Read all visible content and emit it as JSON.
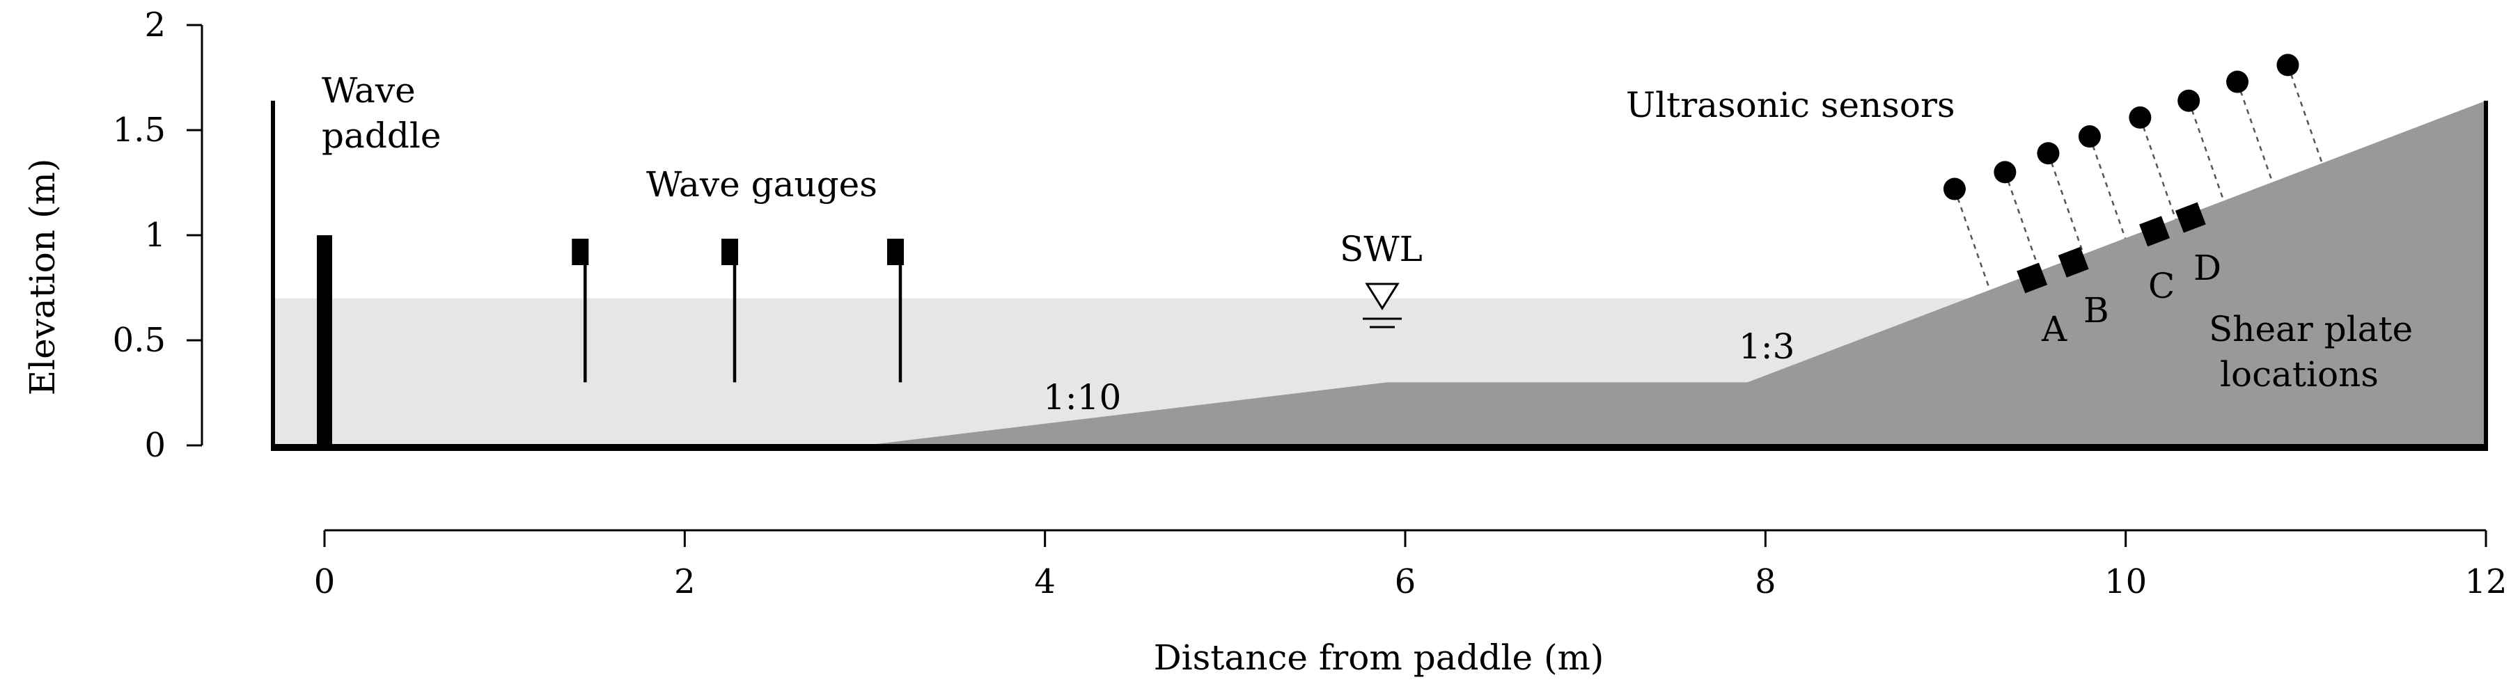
{
  "chart_data": {
    "type": "diagram",
    "title": "",
    "xlabel": "Distance from paddle (m)",
    "ylabel": "Elevation (m)",
    "xlim": [
      0,
      12
    ],
    "ylim": [
      0,
      2
    ],
    "x_ticks": [
      "0",
      "2",
      "4",
      "6",
      "8",
      "10",
      "12"
    ],
    "y_ticks": [
      "0",
      "0.5",
      "1",
      "1.5",
      "2"
    ],
    "swl_elevation": 0.7,
    "bathymetry": [
      [
        3.0,
        0.0
      ],
      [
        5.9,
        0.3
      ],
      [
        7.9,
        0.3
      ],
      [
        12.0,
        1.64
      ]
    ],
    "flume_wall_top": 1.64,
    "paddle": {
      "x": 0.0,
      "top": 1.0
    },
    "wave_gauges_x": [
      1.42,
      2.25,
      3.17
    ],
    "ultrasonic_sensors": [
      {
        "x": 9.05,
        "y": 1.22
      },
      {
        "x": 9.33,
        "y": 1.3
      },
      {
        "x": 9.57,
        "y": 1.39
      },
      {
        "x": 9.8,
        "y": 1.47
      },
      {
        "x": 10.08,
        "y": 1.56
      },
      {
        "x": 10.35,
        "y": 1.64
      },
      {
        "x": 10.62,
        "y": 1.73
      },
      {
        "x": 10.9,
        "y": 1.81
      }
    ],
    "shear_plates": [
      {
        "label": "A",
        "x": 9.48
      },
      {
        "label": "B",
        "x": 9.71
      },
      {
        "label": "C",
        "x": 10.16
      },
      {
        "label": "D",
        "x": 10.36
      }
    ]
  },
  "labels": {
    "paddle_line1": "Wave",
    "paddle_line2": "paddle",
    "gauges": "Wave gauges",
    "sensors": "Ultrasonic sensors",
    "swl": "SWL",
    "slope1": "1:10",
    "slope2": "1:3",
    "plates_line1": "Shear plate",
    "plates_line2": "locations"
  },
  "colors": {
    "water": "#e6e6e6",
    "bed": "#999999",
    "ink": "#000000"
  }
}
